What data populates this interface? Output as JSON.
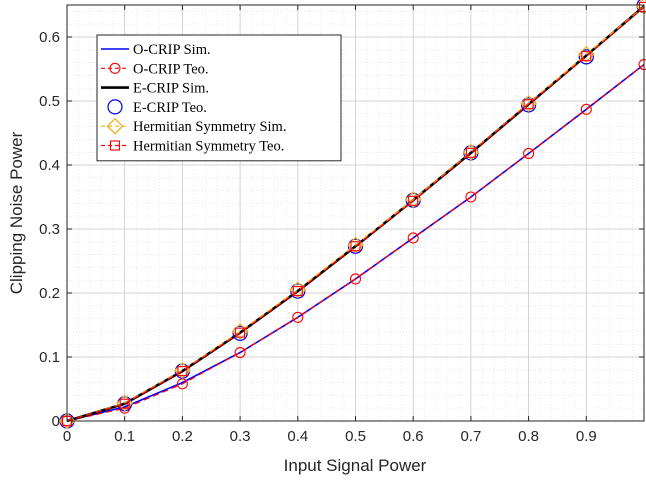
{
  "chart_data": {
    "type": "line",
    "xlabel": "Input Signal Power",
    "ylabel": "Clipping Noise Power",
    "xlim": [
      0,
      1
    ],
    "ylim": [
      0,
      0.65
    ],
    "xticks": [
      "0",
      "0.1",
      "0.2",
      "0.3",
      "0.4",
      "0.5",
      "0.6",
      "0.7",
      "0.8",
      "0.9"
    ],
    "yticks": [
      "0",
      "0.1",
      "0.2",
      "0.3",
      "0.4",
      "0.5",
      "0.6"
    ],
    "grid": true,
    "minor_grid": true,
    "legend_position": "top-left",
    "x": [
      0,
      0.1,
      0.2,
      0.3,
      0.4,
      0.5,
      0.6,
      0.7,
      0.8,
      0.9,
      1.0
    ],
    "series": [
      {
        "name": "O-CRIP Sim.",
        "color": "#0000ff",
        "style": "solid",
        "marker": "none",
        "values": [
          0.0,
          0.022,
          0.06,
          0.107,
          0.162,
          0.222,
          0.286,
          0.35,
          0.418,
          0.487,
          0.557
        ]
      },
      {
        "name": "O-CRIP Teo.",
        "color": "#ff0000",
        "style": "dashed",
        "marker": "circle",
        "values": [
          0.0,
          0.02,
          0.058,
          0.107,
          0.162,
          0.222,
          0.286,
          0.35,
          0.418,
          0.487,
          0.557
        ]
      },
      {
        "name": "E-CRIP Sim.",
        "color": "#000000",
        "style": "solid",
        "marker": "none",
        "values": [
          0.0,
          0.027,
          0.078,
          0.138,
          0.203,
          0.273,
          0.345,
          0.419,
          0.495,
          0.571,
          0.648
        ]
      },
      {
        "name": "E-CRIP Teo.",
        "color": "#0000ff",
        "style": "none",
        "marker": "circle-large",
        "values": [
          0.0,
          0.027,
          0.078,
          0.137,
          0.203,
          0.273,
          0.345,
          0.419,
          0.494,
          0.569,
          0.649
        ]
      },
      {
        "name": "Hermitian Symmetry Sim.",
        "color": "#edb120",
        "style": "dashed",
        "marker": "diamond",
        "values": [
          0.0,
          0.028,
          0.079,
          0.14,
          0.205,
          0.275,
          0.346,
          0.42,
          0.496,
          0.573,
          0.648
        ]
      },
      {
        "name": "Hermitian Symmetry Teo.",
        "color": "#ff0000",
        "style": "dashed",
        "marker": "square",
        "values": [
          0.0,
          0.027,
          0.078,
          0.138,
          0.203,
          0.273,
          0.344,
          0.419,
          0.495,
          0.57,
          0.647
        ]
      }
    ]
  }
}
